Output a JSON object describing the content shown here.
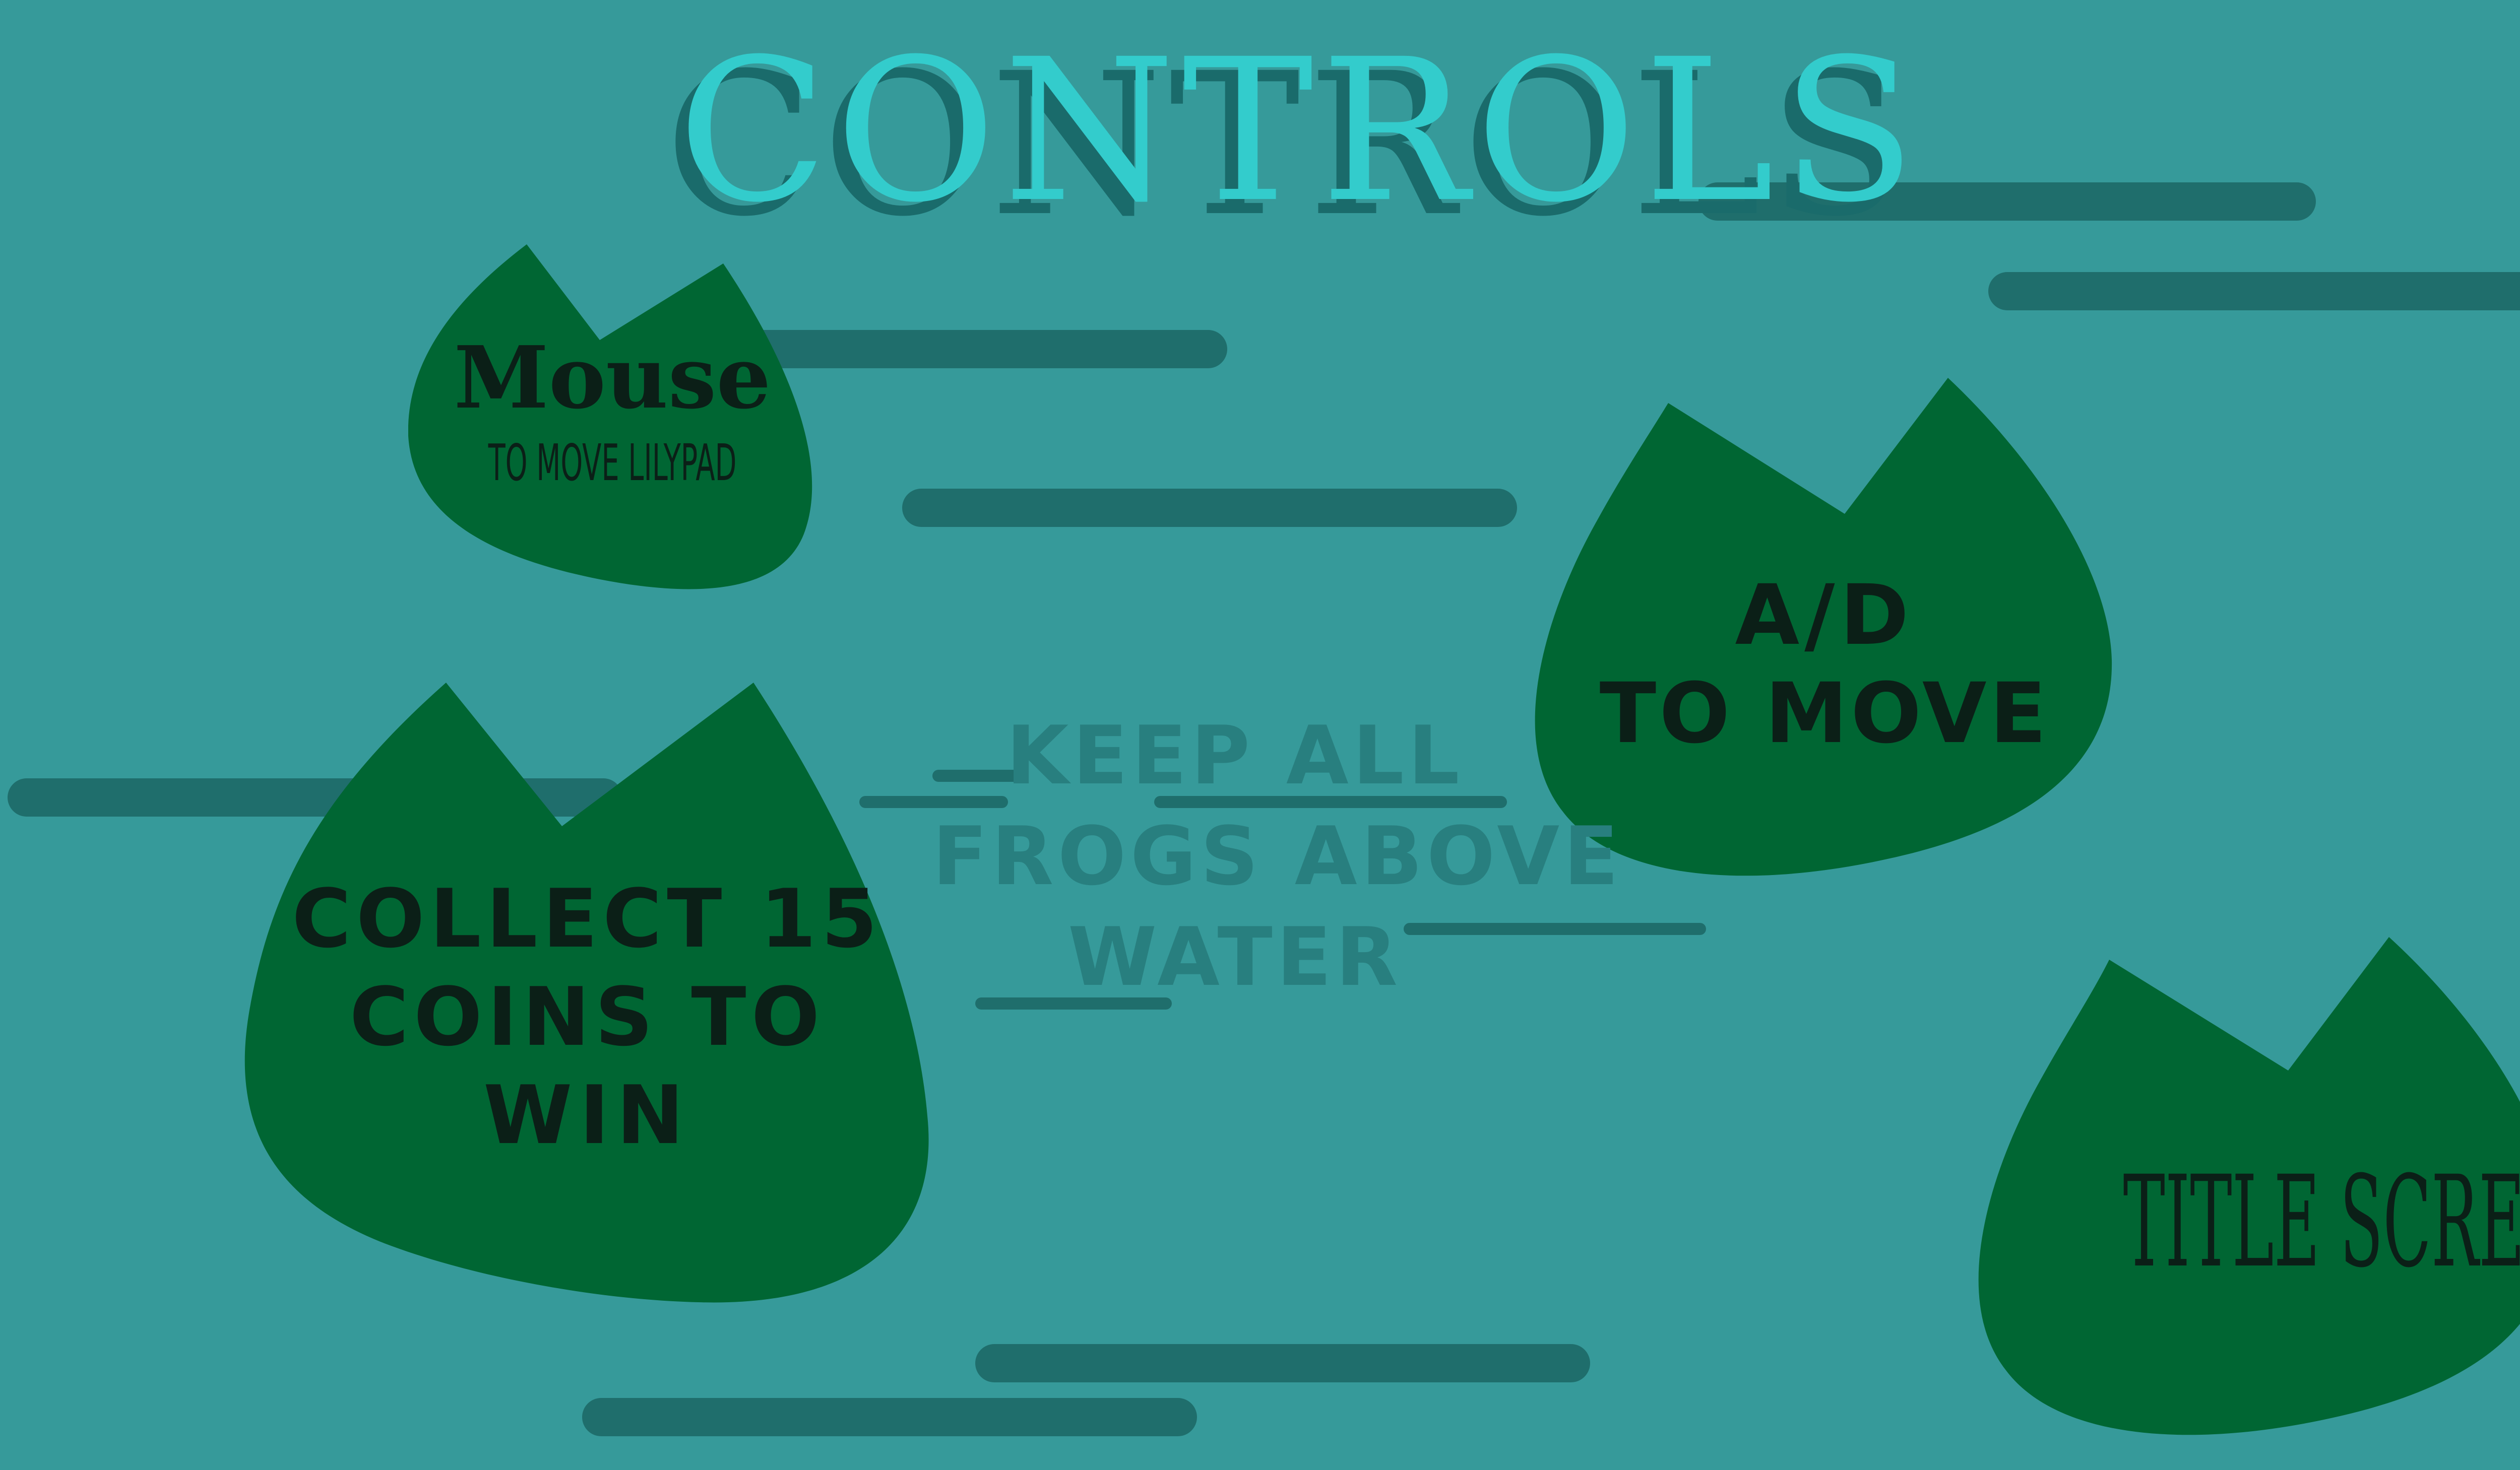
{
  "title": "CONTROLS",
  "center_message": [
    "KEEP ALL",
    "FROGS ABOVE",
    "WATER"
  ],
  "pads": {
    "mouse": {
      "heading": "Mouse",
      "sub": "TO MOVE LILYPAD"
    },
    "ad": {
      "line1": "A/D",
      "line2": "TO MOVE"
    },
    "coins": {
      "line1": "COLLECT 15",
      "line2": "COINS TO",
      "line3": "WIN"
    },
    "title_screen": {
      "label": "TITLE SCREEN"
    }
  },
  "colors": {
    "water": "#369a9a",
    "ripple": "#1f6e6c",
    "lilypad": "#006633",
    "title": "#33cccc",
    "title_shadow": "#1a6b6b",
    "pad_text": "#0b1f17"
  }
}
